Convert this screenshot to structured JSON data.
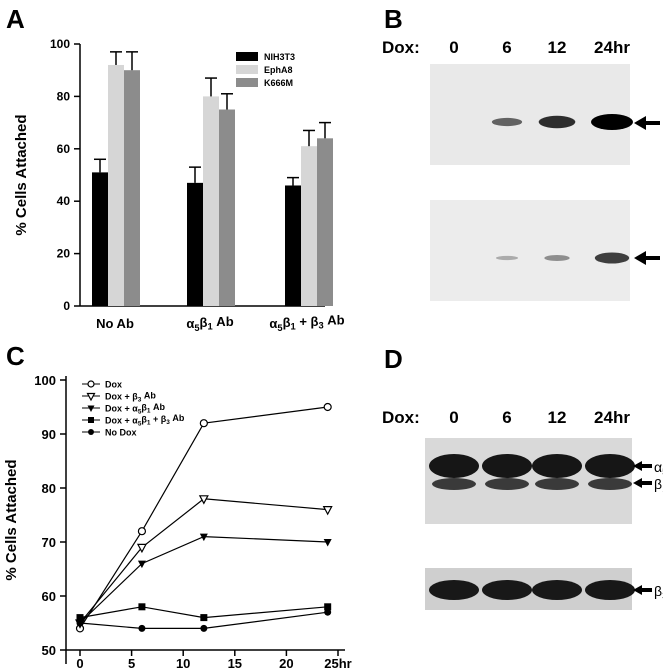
{
  "chart_data": [
    {
      "panel": "A",
      "type": "bar",
      "ylabel": "% Cells Attached",
      "ylim": [
        0,
        100
      ],
      "yticks": [
        "0",
        "20",
        "40",
        "60",
        "80",
        "100"
      ],
      "categories": [
        "No Ab",
        "α5β1 Ab",
        "α5β1 + β3 Ab"
      ],
      "legend_position": "top-right",
      "series": [
        {
          "name": "NIH3T3",
          "color": "#000000",
          "values": [
            51,
            47,
            46
          ],
          "errors": [
            5,
            6,
            3
          ]
        },
        {
          "name": "EphA8",
          "color": "#d6d6d6",
          "values": [
            92,
            80,
            61
          ],
          "errors": [
            5,
            7,
            6
          ]
        },
        {
          "name": "K666M",
          "color": "#8c8c8c",
          "values": [
            90,
            75,
            64
          ],
          "errors": [
            7,
            6,
            6
          ]
        }
      ]
    },
    {
      "panel": "C",
      "type": "line",
      "ylabel": "% Cells Attached",
      "ylim": [
        50,
        100
      ],
      "xlim": [
        0,
        25
      ],
      "xticks": [
        "0",
        "5",
        "10",
        "15",
        "20",
        "25hr"
      ],
      "yticks": [
        "50",
        "60",
        "70",
        "80",
        "90",
        "100"
      ],
      "legend_position": "top-left",
      "x": [
        0,
        6,
        12,
        24
      ],
      "series": [
        {
          "name": "Dox",
          "marker": "open-circle",
          "values": [
            54,
            72,
            92,
            95
          ]
        },
        {
          "name": "Dox + β3 Ab",
          "marker": "open-triangle-down",
          "values": [
            55,
            69,
            78,
            76
          ]
        },
        {
          "name": "Dox + α5β1 Ab",
          "marker": "filled-triangle-down",
          "values": [
            55,
            66,
            71,
            70
          ]
        },
        {
          "name": "Dox + α5β1 + β3 Ab",
          "marker": "filled-square",
          "values": [
            56,
            58,
            56,
            58
          ]
        },
        {
          "name": "No Dox",
          "marker": "filled-circle",
          "values": [
            55,
            54,
            54,
            57
          ]
        }
      ]
    }
  ],
  "panels": {
    "A": {
      "letter": "A"
    },
    "B": {
      "letter": "B",
      "dox_label": "Dox:",
      "lanes": [
        "0",
        "6",
        "12",
        "24hr"
      ],
      "top_band_intensity": [
        0.0,
        0.35,
        0.7,
        1.0
      ],
      "bottom_band_intensity": [
        0.0,
        0.12,
        0.3,
        0.8
      ]
    },
    "C": {
      "letter": "C"
    },
    "D": {
      "letter": "D",
      "dox_label": "Dox:",
      "lanes": [
        "0",
        "6",
        "12",
        "24hr"
      ]
    }
  }
}
